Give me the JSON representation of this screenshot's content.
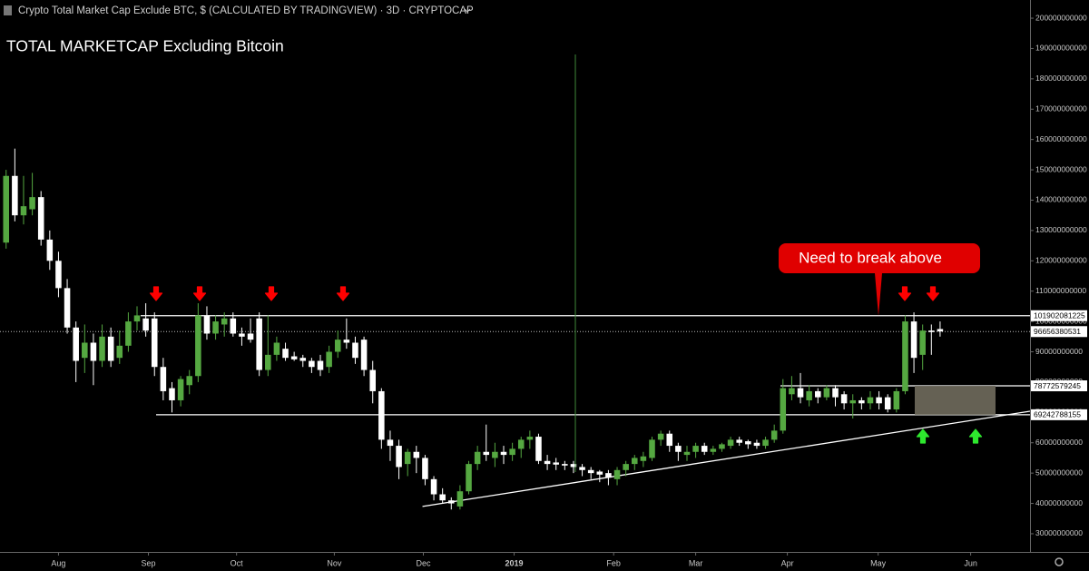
{
  "chart_data": {
    "type": "candlestick",
    "header": "Crypto Total Market Cap Exclude BTC, $ (CALCULATED BY TRADINGVIEW) · 3D · CRYPTOCAP",
    "title": "TOTAL MARKETCAP Excluding Bitcoin",
    "annotation": "Need to break above",
    "up_color": "#55a841",
    "down_color": "#ffffff",
    "xlim": [
      -0.7,
      117.3
    ],
    "xticks": [
      {
        "value": 6.0,
        "label": "Aug"
      },
      {
        "value": 16.3,
        "label": "Sep"
      },
      {
        "value": 26.4,
        "label": "Oct"
      },
      {
        "value": 37.6,
        "label": "Nov"
      },
      {
        "value": 47.8,
        "label": "Dec"
      },
      {
        "value": 58.2,
        "label": "2019"
      },
      {
        "value": 69.6,
        "label": "Feb"
      },
      {
        "value": 79.0,
        "label": "Mar"
      },
      {
        "value": 89.5,
        "label": "Apr"
      },
      {
        "value": 99.9,
        "label": "May"
      },
      {
        "value": 110.5,
        "label": "Jun"
      }
    ],
    "ylim": [
      24000000000.0,
      206000000000.0
    ],
    "yticks": [
      30000000000.0,
      40000000000.0,
      50000000000.0,
      60000000000.0,
      70000000000.0,
      80000000000.0,
      90000000000.0,
      100000000000.0,
      110000000000.0,
      120000000000.0,
      130000000000.0,
      140000000000.0,
      150000000000.0,
      160000000000.0,
      170000000000.0,
      180000000000.0,
      190000000000.0,
      200000000000.0
    ],
    "levels": [
      101902081225,
      96656380531,
      78772579245,
      69242788155
    ],
    "trendline": {
      "x": [
        47.7,
        117.3
      ],
      "y": [
        39000000000.0,
        70400000000.0
      ]
    },
    "open": [
      126000000000.0,
      148000000000.0,
      135000000000.0,
      137000000000.0,
      141000000000.0,
      127000000000.0,
      120000000000.0,
      111000000000.0,
      98000000000.0,
      88000000000.0,
      93000000000.0,
      87000000000.0,
      95000000000.0,
      88000000000.0,
      92000000000.0,
      100000000000.0,
      101000000000.0,
      101000000000.0,
      85000000000.0,
      78000000000.0,
      74000000000.0,
      79000000000.0,
      82000000000.0,
      102000000000.0,
      96000000000.0,
      99000000000.0,
      101000000000.0,
      96000000000.0,
      96000000000.0,
      101000000000.0,
      84000000000.0,
      89000000000.0,
      91000000000.0,
      88500000000.0,
      88000000000.0,
      87000000000.0,
      87000000000.0,
      85000000000.0,
      90000000000.0,
      94000000000.0,
      93000000000.0,
      94000000000.0,
      84000000000.0,
      77000000000.0,
      61000000000.0,
      59000000000.0,
      53000000000.0,
      57000000000.0,
      55000000000.0,
      48000000000.0,
      43000000000.0,
      41000000000.0,
      39000000000.0,
      44000000000.0,
      53000000000.0,
      57000000000.0,
      55000000000.0,
      57000000000.0,
      56000000000.0,
      58000000000.0,
      61000000000.0,
      62000000000.0,
      54000000000.0,
      53500000000.0,
      53000000000.0,
      53000000000.0,
      52000000000.0,
      51000000000.0,
      50500000000.0,
      50000000000.0,
      48000000000.0,
      51000000000.0,
      53000000000.0,
      54000000000.0,
      55000000000.0,
      61000000000.0,
      63000000000.0,
      59000000000.0,
      56000000000.0,
      57000000000.0,
      59000000000.0,
      57000000000.0,
      58000000000.0,
      59000000000.0,
      61000000000.0,
      60500000000.0,
      60000000000.0,
      59000000000.0,
      61000000000.0,
      64000000000.0,
      76000000000.0,
      78000000000.0,
      74000000000.0,
      77000000000.0,
      75000000000.0,
      78000000000.0,
      76000000000.0,
      73000000000.0,
      74000000000.0,
      73000000000.0,
      75000000000.0,
      75000000000.0,
      71000000000.0,
      77000000000.0,
      100000000000.0,
      89000000000.0,
      97000000000.0,
      97500000000.0
    ],
    "high": [
      150000000000.0,
      157000000000.0,
      148000000000.0,
      149000000000.0,
      143000000000.0,
      130000000000.0,
      123000000000.0,
      114000000000.0,
      100000000000.0,
      99000000000.0,
      96000000000.0,
      99000000000.0,
      98000000000.0,
      97000000000.0,
      103000000000.0,
      105000000000.0,
      106000000000.0,
      103000000000.0,
      88000000000.0,
      80000000000.0,
      82000000000.0,
      84000000000.0,
      106000000000.0,
      105000000000.0,
      102000000000.0,
      103000000000.0,
      103000000000.0,
      98000000000.0,
      101000000000.0,
      103000000000.0,
      102000000000.0,
      95000000000.0,
      93000000000.0,
      90000000000.0,
      89000000000.0,
      88000000000.0,
      89000000000.0,
      92000000000.0,
      97000000000.0,
      101000000000.0,
      95000000000.0,
      95000000000.0,
      87000000000.0,
      78000000000.0,
      64000000000.0,
      61000000000.0,
      58000000000.0,
      59000000000.0,
      56000000000.0,
      49000000000.0,
      45000000000.0,
      42000000000.0,
      46000000000.0,
      54000000000.0,
      59000000000.0,
      66000000000.0,
      60000000000.0,
      59000000000.0,
      60000000000.0,
      62000000000.0,
      64000000000.0,
      63000000000.0,
      56000000000.0,
      55000000000.0,
      54000000000.0,
      54000000000.0,
      53000000000.0,
      52000000000.0,
      51000000000.0,
      51000000000.0,
      52000000000.0,
      54000000000.0,
      56000000000.0,
      57000000000.0,
      62000000000.0,
      64000000000.0,
      64000000000.0,
      60000000000.0,
      59000000000.0,
      60000000000.0,
      60000000000.0,
      59000000000.0,
      60000000000.0,
      62000000000.0,
      62000000000.0,
      61000000000.0,
      61000000000.0,
      62000000000.0,
      66000000000.0,
      81000000000.0,
      82000000000.0,
      83000000000.0,
      79000000000.0,
      78000000000.0,
      79000000000.0,
      79000000000.0,
      77000000000.0,
      76000000000.0,
      75000000000.0,
      77000000000.0,
      77000000000.0,
      76000000000.0,
      78000000000.0,
      102000000000.0,
      103000000000.0,
      99000000000.0,
      99000000000.0,
      100000000000.0
    ],
    "low": [
      124000000000.0,
      133000000000.0,
      132000000000.0,
      135000000000.0,
      125000000000.0,
      117000000000.0,
      108000000000.0,
      96000000000.0,
      80000000000.0,
      83000000000.0,
      79000000000.0,
      85000000000.0,
      85000000000.0,
      86000000000.0,
      90000000000.0,
      97000000000.0,
      95000000000.0,
      82000000000.0,
      74000000000.0,
      70000000000.0,
      72000000000.0,
      76000000000.0,
      80000000000.0,
      94000000000.0,
      94000000000.0,
      95000000000.0,
      95000000000.0,
      92000000000.0,
      93000000000.0,
      82000000000.0,
      82000000000.0,
      87000000000.0,
      87000000000.0,
      87000000000.0,
      85000000000.0,
      83000000000.0,
      82000000000.0,
      83000000000.0,
      88000000000.0,
      91000000000.0,
      86000000000.0,
      82000000000.0,
      73000000000.0,
      58000000000.0,
      54000000000.0,
      48000000000.0,
      49000000000.0,
      50000000000.0,
      46000000000.0,
      41000000000.0,
      40000000000.0,
      38000000000.0,
      38000000000.0,
      43000000000.0,
      51000000000.0,
      54000000000.0,
      52000000000.0,
      53000000000.0,
      54000000000.0,
      55000000000.0,
      58000000000.0,
      53000000000.0,
      51000000000.0,
      51000000000.0,
      51000000000.0,
      50000000000.0,
      49000000000.0,
      48000000000.0,
      47000000000.0,
      46000000000.0,
      46000000000.0,
      49000000000.0,
      51000000000.0,
      52000000000.0,
      54000000000.0,
      59000000000.0,
      57000000000.0,
      54000000000.0,
      54000000000.0,
      55000000000.0,
      56000000000.0,
      56000000000.0,
      57000000000.0,
      58000000000.0,
      59000000000.0,
      58000000000.0,
      58000000000.0,
      58000000000.0,
      60000000000.0,
      63000000000.0,
      74000000000.0,
      73000000000.0,
      72000000000.0,
      73000000000.0,
      74000000000.0,
      72000000000.0,
      71000000000.0,
      68000000000.0,
      71000000000.0,
      71000000000.0,
      71000000000.0,
      70000000000.0,
      70000000000.0,
      76000000000.0,
      83000000000.0,
      84000000000.0,
      89000000000.0,
      95000000000.0
    ],
    "close": [
      148000000000.0,
      135000000000.0,
      138000000000.0,
      141000000000.0,
      127000000000.0,
      120000000000.0,
      111000000000.0,
      98000000000.0,
      87000000000.0,
      93000000000.0,
      87000000000.0,
      95000000000.0,
      87000000000.0,
      92000000000.0,
      100000000000.0,
      102000000000.0,
      97000000000.0,
      85000000000.0,
      77000000000.0,
      74000000000.0,
      81000000000.0,
      82000000000.0,
      102000000000.0,
      96000000000.0,
      100000000000.0,
      101000000000.0,
      96000000000.0,
      95000000000.0,
      94000000000.0,
      84000000000.0,
      89000000000.0,
      93000000000.0,
      88000000000.0,
      87500000000.0,
      87000000000.0,
      85000000000.0,
      84000000000.0,
      90000000000.0,
      94000000000.0,
      93000000000.0,
      88000000000.0,
      84000000000.0,
      77000000000.0,
      61000000000.0,
      59000000000.0,
      52000000000.0,
      57000000000.0,
      55000000000.0,
      48000000000.0,
      43000000000.0,
      41000000000.0,
      40000000000.0,
      44000000000.0,
      53000000000.0,
      57000000000.0,
      56000000000.0,
      57000000000.0,
      56000000000.0,
      58000000000.0,
      61000000000.0,
      62000000000.0,
      54000000000.0,
      53000000000.0,
      52800000000.0,
      52500000000.0,
      52000000000.0,
      51000000000.0,
      50000000000.0,
      49500000000.0,
      48500000000.0,
      51000000000.0,
      53000000000.0,
      55000000000.0,
      55500000000.0,
      61000000000.0,
      63000000000.0,
      59000000000.0,
      57000000000.0,
      57000000000.0,
      59000000000.0,
      57000000000.0,
      58000000000.0,
      59500000000.0,
      61000000000.0,
      60000000000.0,
      59500000000.0,
      59000000000.0,
      61000000000.0,
      64000000000.0,
      78000000000.0,
      78000000000.0,
      75000000000.0,
      77000000000.0,
      75000000000.0,
      78000000000.0,
      75000000000.0,
      73000000000.0,
      74000000000.0,
      73000000000.0,
      75000000000.0,
      73000000000.0,
      71000000000.0,
      77000000000.0,
      100000000000.0,
      88000000000.0,
      97000000000.0,
      96500000000.0,
      96700000000.0
    ]
  }
}
